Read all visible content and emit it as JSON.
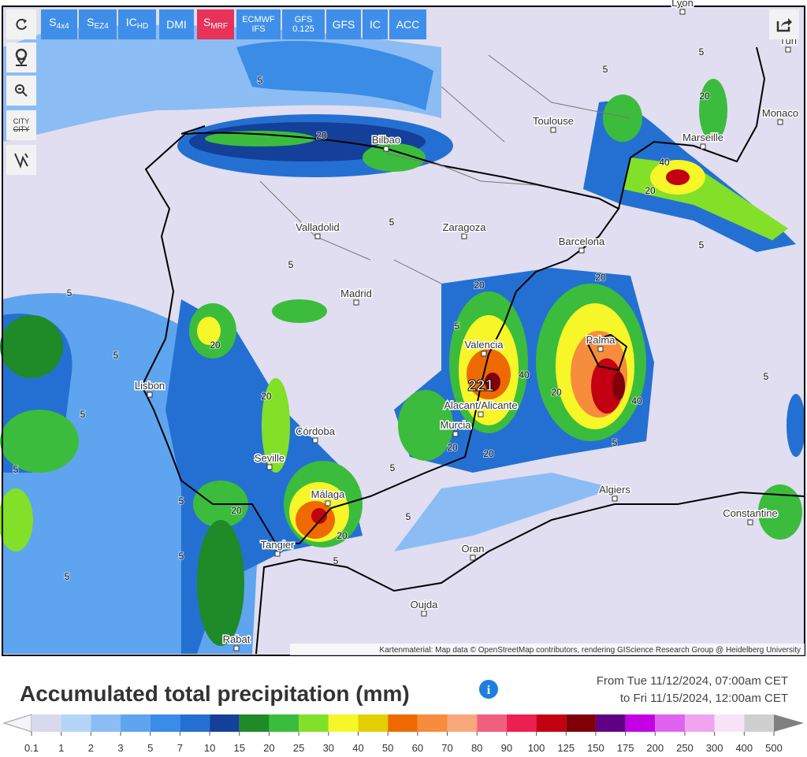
{
  "toolbar": {
    "models": [
      {
        "label": "S",
        "sub": "4x4"
      },
      {
        "label": "S",
        "sub": "EZ4"
      },
      {
        "label": "IC",
        "sub": "HD"
      },
      {
        "label": "DMI"
      },
      {
        "label": "S",
        "sub": "MRF",
        "active": true
      },
      {
        "label": "ECMWF",
        "line2": "IFS"
      },
      {
        "label": "GFS",
        "line2": "0.125"
      },
      {
        "label": "GFS"
      },
      {
        "label": "IC"
      },
      {
        "label": "ACC"
      }
    ],
    "city_toggle": {
      "line1": "CITY",
      "line2": "CITY"
    }
  },
  "map": {
    "cities": [
      "Lyon",
      "Turi",
      "Toulouse",
      "Monaco",
      "Marseille",
      "Bilbao",
      "Valladolid",
      "Zaragoza",
      "Barcelona",
      "Madrid",
      "Valencia",
      "Palma",
      "Lisbon",
      "Alacant/Alicante",
      "Murcia",
      "Córdoba",
      "Seville",
      "Málaga",
      "Algiers",
      "Constantine",
      "Tangier",
      "Oran",
      "Oujda",
      "Rabat"
    ],
    "contour_labels": [
      "5",
      "5",
      "5",
      "20",
      "20",
      "40",
      "20",
      "5",
      "5",
      "5",
      "5",
      "20",
      "5",
      "20",
      "40",
      "20",
      "40",
      "5",
      "20",
      "20",
      "20",
      "5",
      "20",
      "20",
      "5",
      "5",
      "5",
      "5",
      "5",
      "20",
      "5",
      "5",
      "5",
      "5"
    ],
    "peak_label": "221",
    "attribution": "Kartenmaterial: Map data © OpenStreetMap contributors, rendering GIScience Research Group @ Heidelberg University"
  },
  "footer": {
    "title": "Accumulated total precipitation (mm)",
    "date_from": "From Tue 11/12/2024, 07:00am CET",
    "date_to": "to Fri 11/15/2024, 12:00am CET",
    "legend": {
      "ticks": [
        0.1,
        1,
        2,
        3,
        5,
        7,
        10,
        15,
        20,
        25,
        30,
        40,
        50,
        60,
        70,
        80,
        90,
        100,
        125,
        150,
        175,
        200,
        250,
        300,
        400,
        500
      ],
      "colors": [
        "#d8d8ee",
        "#b4d4f8",
        "#8cbcf4",
        "#5ea4ee",
        "#3a8ce6",
        "#2470d2",
        "#14409a",
        "#1e8a28",
        "#3cbc3c",
        "#82e028",
        "#f6f628",
        "#e2d000",
        "#ee6a00",
        "#f68c3c",
        "#f8a87a",
        "#f0607e",
        "#ec2050",
        "#c20012",
        "#800008",
        "#600084",
        "#c400e4",
        "#e062f0",
        "#f0a4f0",
        "#f8e4f8",
        "#cfcfcf"
      ]
    }
  }
}
